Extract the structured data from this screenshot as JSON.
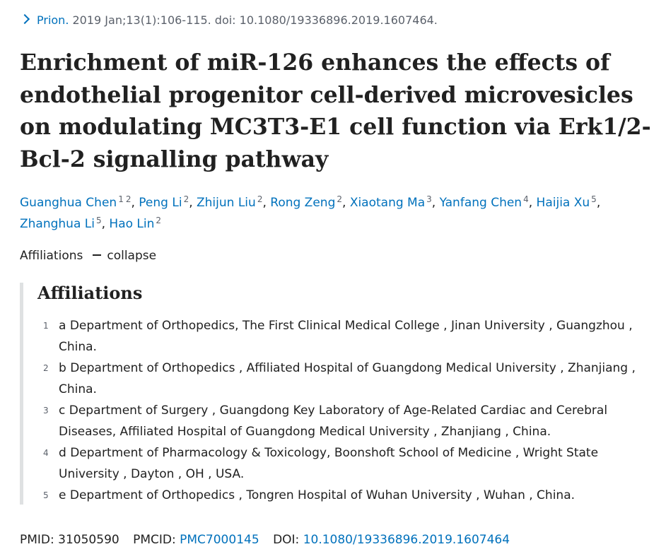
{
  "citation": {
    "journal": "Prion.",
    "details": " 2019 Jan;13(1):106-115. doi: 10.1080/19336896.2019.1607464."
  },
  "title": "Enrichment of miR-126 enhances the effects of endothelial progenitor cell-derived microvesicles on modulating MC3T3-E1 cell function via Erk1/2-Bcl-2 signalling pathway",
  "authors": [
    {
      "name": "Guanghua Chen",
      "affs": [
        "1",
        "2"
      ]
    },
    {
      "name": "Peng Li",
      "affs": [
        "2"
      ]
    },
    {
      "name": "Zhijun Liu",
      "affs": [
        "2"
      ]
    },
    {
      "name": "Rong Zeng",
      "affs": [
        "2"
      ]
    },
    {
      "name": "Xiaotang Ma",
      "affs": [
        "3"
      ]
    },
    {
      "name": "Yanfang Chen",
      "affs": [
        "4"
      ]
    },
    {
      "name": "Haijia Xu",
      "affs": [
        "5"
      ]
    },
    {
      "name": "Zhanghua Li",
      "affs": [
        "5"
      ]
    },
    {
      "name": "Hao Lin",
      "affs": [
        "2"
      ]
    }
  ],
  "affiliations_toggle": {
    "label": "Affiliations",
    "action": "collapse"
  },
  "affiliations": {
    "heading": "Affiliations",
    "items": [
      {
        "num": "1",
        "text": "a Department of Orthopedics, The First Clinical Medical College , Jinan University , Guangzhou , China."
      },
      {
        "num": "2",
        "text": "b Department of Orthopedics , Affiliated Hospital of Guangdong Medical University , Zhanjiang , China."
      },
      {
        "num": "3",
        "text": "c Department of Surgery , Guangdong Key Laboratory of Age-Related Cardiac and Cerebral Diseases, Affiliated Hospital of Guangdong Medical University , Zhanjiang , China."
      },
      {
        "num": "4",
        "text": "d Department of Pharmacology & Toxicology, Boonshoft School of Medicine , Wright State University , Dayton , OH , USA."
      },
      {
        "num": "5",
        "text": "e Department of Orthopedics , Tongren Hospital of Wuhan University , Wuhan , China."
      }
    ]
  },
  "identifiers": {
    "pmid_label": "PMID:",
    "pmid": "31050590",
    "pmcid_label": "PMCID:",
    "pmcid": "PMC7000145",
    "doi_label": "DOI:",
    "doi": "10.1080/19336896.2019.1607464"
  },
  "colors": {
    "link": "#0071bc",
    "text": "#212121",
    "muted": "#5b616b",
    "border": "#dfe1e2"
  },
  "icons": {
    "citation": "chevron-right-icon",
    "collapse": "minus-icon"
  }
}
